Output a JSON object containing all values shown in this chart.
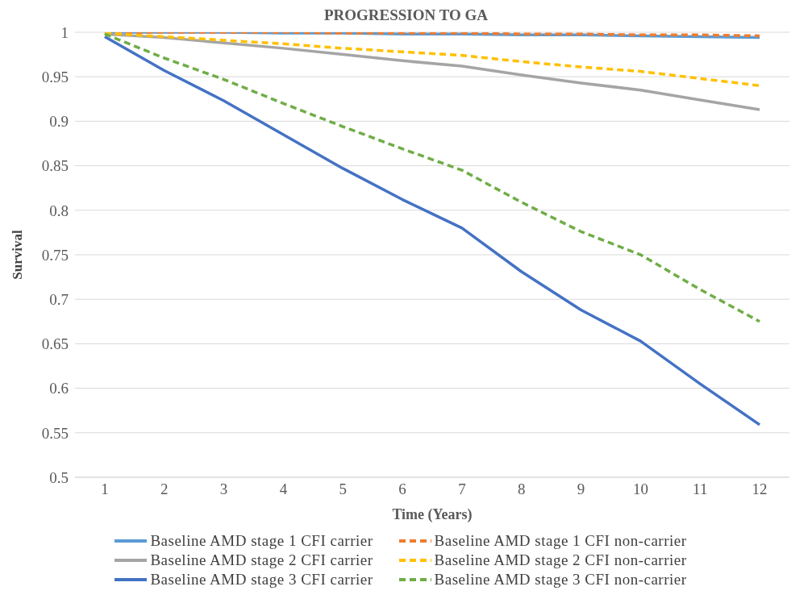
{
  "chart_data": {
    "type": "line",
    "title": "PROGRESSION TO GA",
    "xlabel": "Time (Years)",
    "ylabel": "Survival",
    "x": [
      1,
      2,
      3,
      4,
      5,
      6,
      7,
      8,
      9,
      10,
      11,
      12
    ],
    "xlim": [
      0.5,
      12.5
    ],
    "xticks": [
      1,
      2,
      3,
      4,
      5,
      6,
      7,
      8,
      9,
      10,
      11,
      12
    ],
    "ylim": [
      0.5,
      1
    ],
    "yticks": [
      0.5,
      0.55,
      0.6,
      0.65,
      0.7,
      0.75,
      0.8,
      0.85,
      0.9,
      0.95,
      1
    ],
    "grid": "y",
    "legend": "bottom",
    "marker": "none",
    "series": [
      {
        "name": "Baseline AMD stage 1 CFI carrier",
        "color": "#5b9bd5",
        "line_style": "solid",
        "values": [
          1,
          1,
          1,
          0.999,
          0.999,
          0.998,
          0.998,
          0.997,
          0.997,
          0.996,
          0.995,
          0.994
        ]
      },
      {
        "name": "Baseline AMD stage 1 CFI non-carrier",
        "color": "#ed7d31",
        "line_style": "dashed",
        "values": [
          1,
          1,
          1,
          1,
          0.999,
          0.999,
          0.999,
          0.998,
          0.998,
          0.997,
          0.997,
          0.996
        ]
      },
      {
        "name": "Baseline AMD stage 2 CFI carrier",
        "color": "#a5a5a5",
        "line_style": "solid",
        "values": [
          0.998,
          0.994,
          0.988,
          0.982,
          0.975,
          0.968,
          0.962,
          0.952,
          0.943,
          0.935,
          0.924,
          0.913
        ]
      },
      {
        "name": "Baseline AMD stage 2 CFI non-carrier",
        "color": "#ffc000",
        "line_style": "dashed",
        "values": [
          0.999,
          0.995,
          0.991,
          0.987,
          0.982,
          0.978,
          0.974,
          0.967,
          0.961,
          0.956,
          0.948,
          0.94
        ]
      },
      {
        "name": "Baseline AMD stage 3 CFI carrier",
        "color": "#4472c4",
        "line_style": "solid",
        "values": [
          0.995,
          0.957,
          0.923,
          0.885,
          0.847,
          0.812,
          0.78,
          0.731,
          0.688,
          0.653,
          0.605,
          0.559
        ]
      },
      {
        "name": "Baseline AMD stage 3 CFI non-carrier",
        "color": "#70ad47",
        "line_style": "dashed",
        "values": [
          0.998,
          0.971,
          0.947,
          0.92,
          0.894,
          0.869,
          0.845,
          0.809,
          0.776,
          0.75,
          0.711,
          0.675
        ]
      }
    ]
  }
}
